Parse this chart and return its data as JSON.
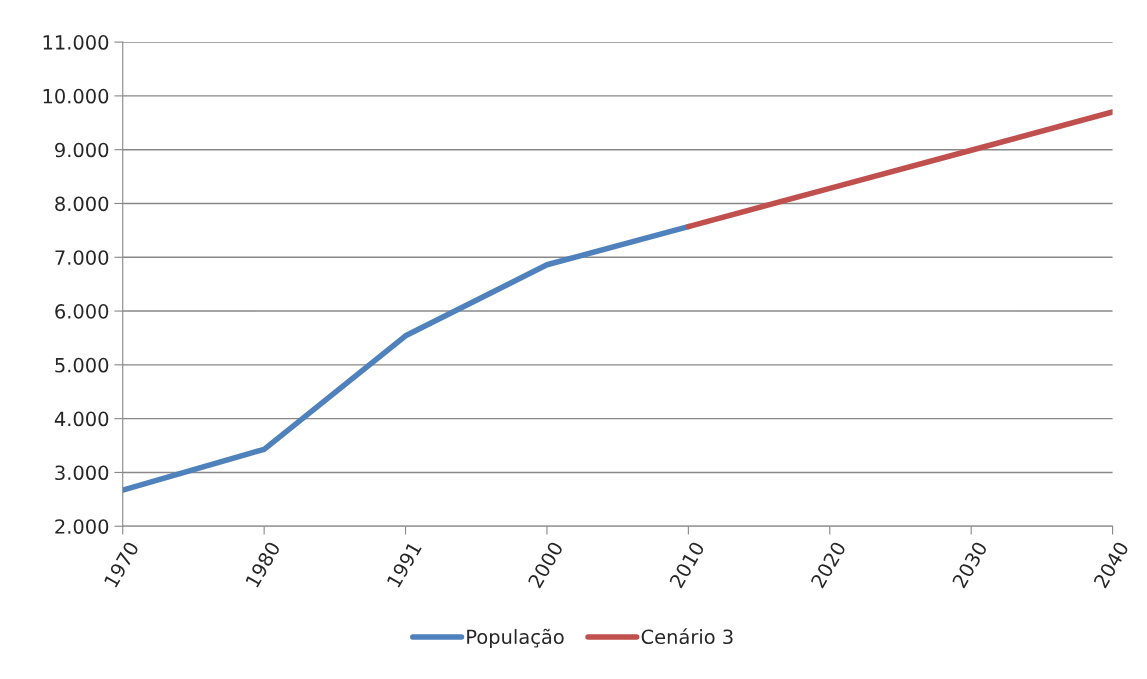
{
  "chart_data": {
    "type": "line",
    "categories": [
      "1970",
      "1980",
      "1991",
      "2000",
      "2010",
      "2020",
      "2030",
      "2040"
    ],
    "series": [
      {
        "name": "População",
        "color": "#4f81bd",
        "values": [
          2670,
          3430,
          5540,
          6860,
          7570,
          null,
          null,
          null
        ]
      },
      {
        "name": "Cenário 3",
        "color": "#c0504d",
        "values": [
          null,
          null,
          null,
          null,
          7570,
          8280,
          8990,
          9700
        ]
      }
    ],
    "ylim": [
      2000,
      11000
    ],
    "yticks": [
      {
        "value": 2000,
        "label": "2.000"
      },
      {
        "value": 3000,
        "label": "3.000"
      },
      {
        "value": 4000,
        "label": "4.000"
      },
      {
        "value": 5000,
        "label": "5.000"
      },
      {
        "value": 6000,
        "label": "6.000"
      },
      {
        "value": 7000,
        "label": "7.000"
      },
      {
        "value": 8000,
        "label": "8.000"
      },
      {
        "value": 9000,
        "label": "9.000"
      },
      {
        "value": 10000,
        "label": "10.000"
      },
      {
        "value": 11000,
        "label": "11.000"
      }
    ],
    "grid": "y",
    "legend": "bottom",
    "marker": "none",
    "line_style": "solid"
  }
}
